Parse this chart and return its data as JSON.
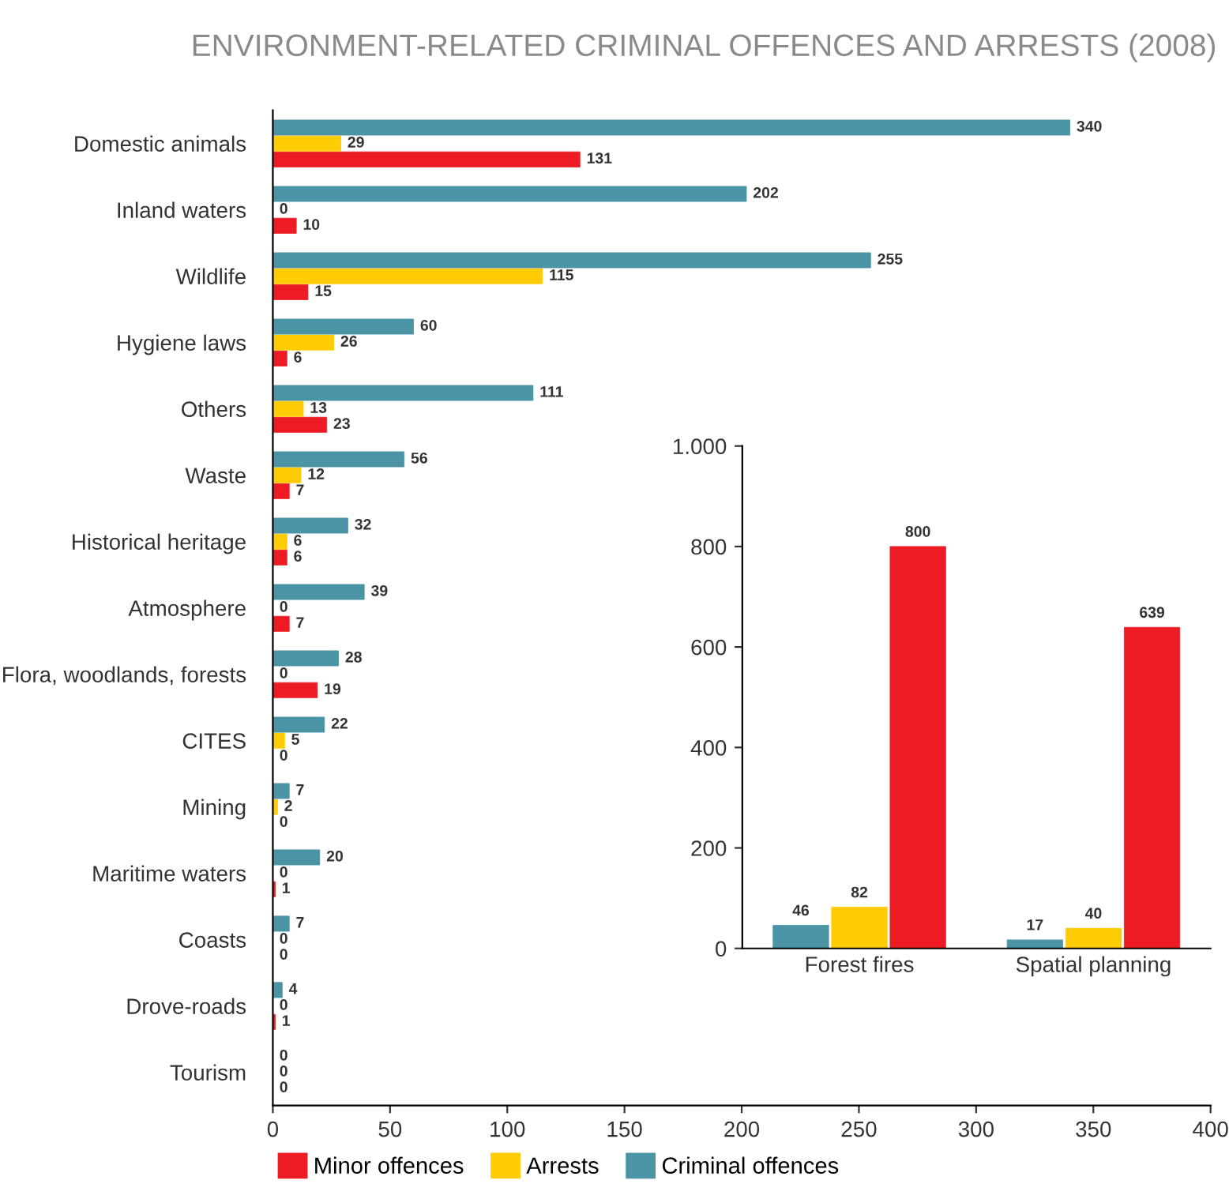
{
  "chart_data": [
    {
      "type": "bar",
      "orientation": "horizontal",
      "title": "ENVIRONMENT-RELATED CRIMINAL OFFENCES AND ARRESTS (2008)",
      "categories": [
        "Domestic animals",
        "Inland waters",
        "Wildlife",
        "Hygiene laws",
        "Others",
        "Waste",
        "Historical heritage",
        "Atmosphere",
        "Flora, woodlands, forests",
        "CITES",
        "Mining",
        "Maritime waters",
        "Coasts",
        "Drove-roads",
        "Tourism"
      ],
      "series": [
        {
          "name": "Minor offences",
          "color": "#ed1c24",
          "values": [
            131,
            10,
            15,
            6,
            23,
            7,
            6,
            7,
            19,
            0,
            0,
            1,
            0,
            1,
            0
          ]
        },
        {
          "name": "Arrests",
          "color": "#ffcb05",
          "values": [
            29,
            0,
            115,
            26,
            13,
            12,
            6,
            0,
            0,
            5,
            2,
            0,
            0,
            0,
            0
          ]
        },
        {
          "name": "Criminal offences",
          "color": "#4a94a6",
          "values": [
            340,
            202,
            255,
            60,
            111,
            56,
            32,
            39,
            28,
            22,
            7,
            20,
            7,
            4,
            0
          ]
        }
      ],
      "xlim": [
        0,
        400
      ],
      "xticks": [
        0,
        50,
        100,
        150,
        200,
        250,
        300,
        350,
        400
      ],
      "data_labels": true,
      "legend": "bottom",
      "grid": false
    },
    {
      "type": "bar",
      "categories": [
        "Forest fires",
        "Spatial planning"
      ],
      "series": [
        {
          "color": "#4a94a6",
          "values": [
            46,
            17
          ]
        },
        {
          "color": "#ffcb05",
          "values": [
            82,
            40
          ]
        },
        {
          "color": "#ed1c24",
          "values": [
            800,
            639
          ]
        }
      ],
      "ylim": [
        0,
        1000
      ],
      "yticks": [
        0,
        200,
        400,
        600,
        800,
        {
          "value": 1000,
          "label": "1.000"
        }
      ],
      "data_labels": true,
      "grid": false
    }
  ]
}
